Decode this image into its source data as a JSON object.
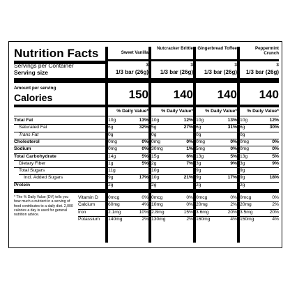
{
  "title": "Nutrition Facts",
  "servings_label": "Servings per Container",
  "serving_size_label": "Serving size",
  "amount_per_serving": "Amount per serving",
  "calories_label": "Calories",
  "dv_header": "% Daily Value*",
  "products": [
    {
      "name": "Sweet Vanilla",
      "servings": "3",
      "serving_size": "1/3 bar (26g)",
      "calories": "150",
      "total_fat": "10g",
      "total_fat_dv": "13%",
      "sat_fat": "6g",
      "sat_fat_dv": "32%",
      "trans_fat": "0g",
      "cholesterol": "0mg",
      "cholesterol_dv": "0%",
      "sodium": "0mg",
      "sodium_dv": "0%",
      "carb": "14g",
      "carb_dv": "5%",
      "fiber": "1g",
      "fiber_dv": "5%",
      "sugars": "11g",
      "added_sugars": "9g",
      "added_sugars_dv": "17%",
      "protein": "2g",
      "vitd": "0mcg",
      "vitd_dv": "0%",
      "calcium": "60mg",
      "calcium_dv": "4%",
      "iron": "2.1mg",
      "iron_dv": "10%",
      "potassium": "140mg",
      "potassium_dv": "2%"
    },
    {
      "name": "Nutcracker Brittle",
      "servings": "3",
      "serving_size": "1/3 bar (26g)",
      "calories": "140",
      "total_fat": "10g",
      "total_fat_dv": "12%",
      "sat_fat": "5g",
      "sat_fat_dv": "27%",
      "trans_fat": "0g",
      "cholesterol": "0mg",
      "cholesterol_dv": "0%",
      "sodium": "30mg",
      "sodium_dv": "1%",
      "carb": "15g",
      "carb_dv": "6%",
      "fiber": "2g",
      "fiber_dv": "7%",
      "sugars": "10g",
      "added_sugars": "10g",
      "added_sugars_dv": "21%",
      "protein": "2g",
      "vitd": "0mcg",
      "vitd_dv": "0%",
      "calcium": "10mg",
      "calcium_dv": "0%",
      "iron": "2.8mg",
      "iron_dv": "15%",
      "potassium": "130mg",
      "potassium_dv": "2%"
    },
    {
      "name": "Gingerbread Toffee",
      "servings": "3",
      "serving_size": "1/3 bar (26g)",
      "calories": "140",
      "total_fat": "10g",
      "total_fat_dv": "13%",
      "sat_fat": "6g",
      "sat_fat_dv": "31%",
      "trans_fat": "0g",
      "cholesterol": "0mg",
      "cholesterol_dv": "0%",
      "sodium": "5mg",
      "sodium_dv": "0%",
      "carb": "13g",
      "carb_dv": "5%",
      "fiber": "3g",
      "fiber_dv": "9%",
      "sugars": "9g",
      "added_sugars": "9g",
      "added_sugars_dv": "17%",
      "protein": "2g",
      "vitd": "0mcg",
      "vitd_dv": "0%",
      "calcium": "20mg",
      "calcium_dv": "2%",
      "iron": "3.6mg",
      "iron_dv": "20%",
      "potassium": "160mg",
      "potassium_dv": "4%"
    },
    {
      "name": "Peppermint Crunch",
      "servings": "3",
      "serving_size": "1/3 bar (26g)",
      "calories": "140",
      "total_fat": "10g",
      "total_fat_dv": "12%",
      "sat_fat": "6g",
      "sat_fat_dv": "30%",
      "trans_fat": "0g",
      "cholesterol": "0mg",
      "cholesterol_dv": "0%",
      "sodium": "0mg",
      "sodium_dv": "0%",
      "carb": "13g",
      "carb_dv": "5%",
      "fiber": "3g",
      "fiber_dv": "9%",
      "sugars": "9g",
      "added_sugars": "9g",
      "added_sugars_dv": "18%",
      "protein": "2g",
      "vitd": "0mcg",
      "vitd_dv": "0%",
      "calcium": "20mg",
      "calcium_dv": "2%",
      "iron": "3.5mg",
      "iron_dv": "20%",
      "potassium": "150mg",
      "potassium_dv": "4%"
    }
  ],
  "rows": {
    "total_fat": "Total Fat",
    "sat_fat": "Saturated Fat",
    "trans_fat": "Trans Fat",
    "cholesterol": "Cholesterol",
    "sodium": "Sodium",
    "carb": "Total Carbohydrate",
    "fiber": "Dietary Fiber",
    "sugars": "Total Sugars",
    "added_sugars": "Incl. Added Sugars",
    "protein": "Protein"
  },
  "micros": {
    "vitd": "Vitamin D",
    "calcium": "Calcium",
    "iron": "Iron",
    "potassium": "Potassium"
  },
  "footnote": "* The % Daily Value (DV) tells you how much a nutrient in a serving of food contributes to a daily diet. 2,000 calories a day is used for general nutrition advice."
}
